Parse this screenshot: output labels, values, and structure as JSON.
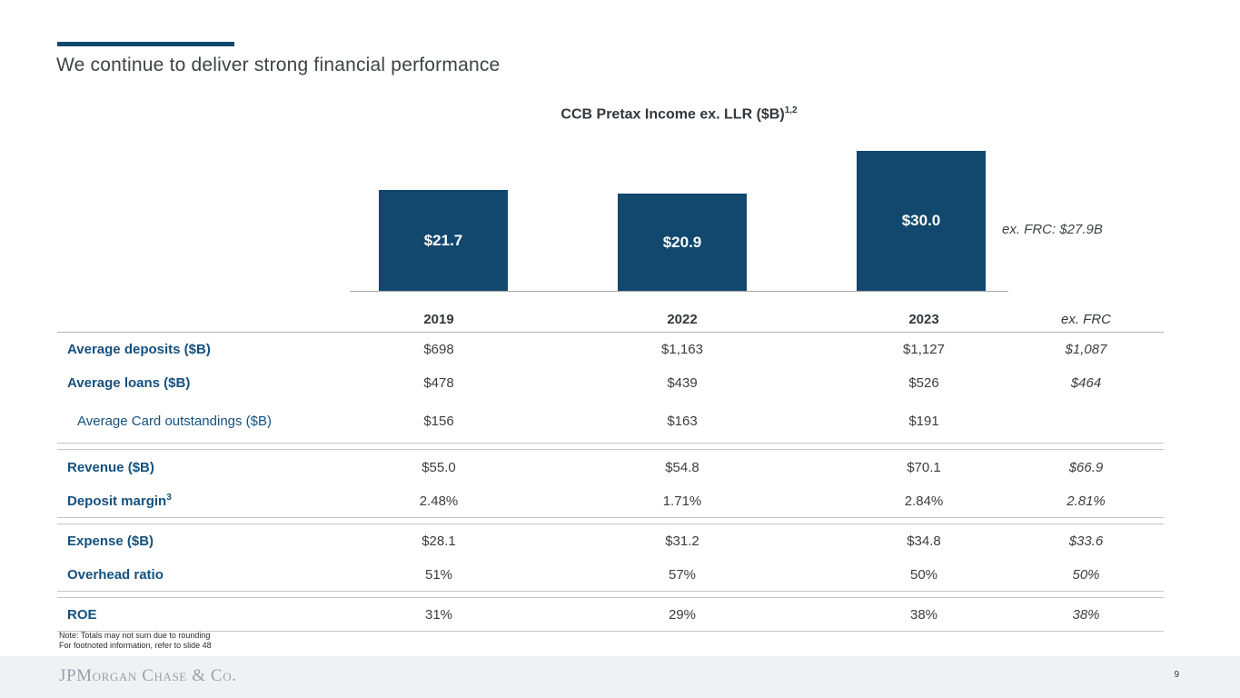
{
  "slide": {
    "title": "We continue to deliver strong financial performance",
    "notes": [
      "Note: Totals may not sum due to rounding",
      "For footnoted information, refer to slide 48"
    ],
    "logo_text": "JPMorgan Chase & Co.",
    "page_number": "9"
  },
  "chart": {
    "title": "CCB Pretax Income ex. LLR ($B)",
    "title_superscript": "1,2",
    "annotation": "ex. FRC: $27.9B"
  },
  "chart_data": {
    "type": "bar",
    "title": "CCB Pretax Income ex. LLR ($B)",
    "categories": [
      "2019",
      "2022",
      "2023"
    ],
    "values": [
      21.7,
      20.9,
      30.0
    ],
    "data_labels": [
      "$21.7",
      "$20.9",
      "$30.0"
    ],
    "annotation": "ex. FRC: $27.9B",
    "ylim": [
      0,
      30
    ],
    "grid": false,
    "legend": false,
    "bar_color": "#12486e"
  },
  "table": {
    "columns": [
      "2019",
      "2022",
      "2023",
      "ex. FRC"
    ],
    "rows": [
      {
        "label": "Average deposits ($B)",
        "sup": "",
        "bold": true,
        "indent": false,
        "values": [
          "$698",
          "$1,163",
          "$1,127",
          "$1,087"
        ],
        "separator_after": false
      },
      {
        "label": "Average loans ($B)",
        "sup": "",
        "bold": true,
        "indent": false,
        "values": [
          "$478",
          "$439",
          "$526",
          "$464"
        ],
        "separator_after": false
      },
      {
        "label": "Average Card outstandings ($B)",
        "sup": "",
        "bold": false,
        "indent": true,
        "values": [
          "$156",
          "$163",
          "$191",
          ""
        ],
        "separator_after": true
      },
      {
        "label": "Revenue ($B)",
        "sup": "",
        "bold": true,
        "indent": false,
        "values": [
          "$55.0",
          "$54.8",
          "$70.1",
          "$66.9"
        ],
        "separator_after": false
      },
      {
        "label": "Deposit margin",
        "sup": "3",
        "bold": true,
        "indent": false,
        "values": [
          "2.48%",
          "1.71%",
          "2.84%",
          "2.81%"
        ],
        "separator_after": true
      },
      {
        "label": "Expense ($B)",
        "sup": "",
        "bold": true,
        "indent": false,
        "values": [
          "$28.1",
          "$31.2",
          "$34.8",
          "$33.6"
        ],
        "separator_after": false
      },
      {
        "label": "Overhead ratio",
        "sup": "",
        "bold": true,
        "indent": false,
        "values": [
          "51%",
          "57%",
          "50%",
          "50%"
        ],
        "separator_after": true
      },
      {
        "label": "ROE",
        "sup": "",
        "bold": true,
        "indent": false,
        "values": [
          "31%",
          "29%",
          "38%",
          "38%"
        ],
        "separator_after": false
      }
    ]
  },
  "colors": {
    "accent_blue": "#12486e",
    "label_blue": "#15517f",
    "line_gray": "#c4c4c4",
    "footer_bg": "#f0f1f3",
    "logo_gray": "#9aa0a8"
  }
}
